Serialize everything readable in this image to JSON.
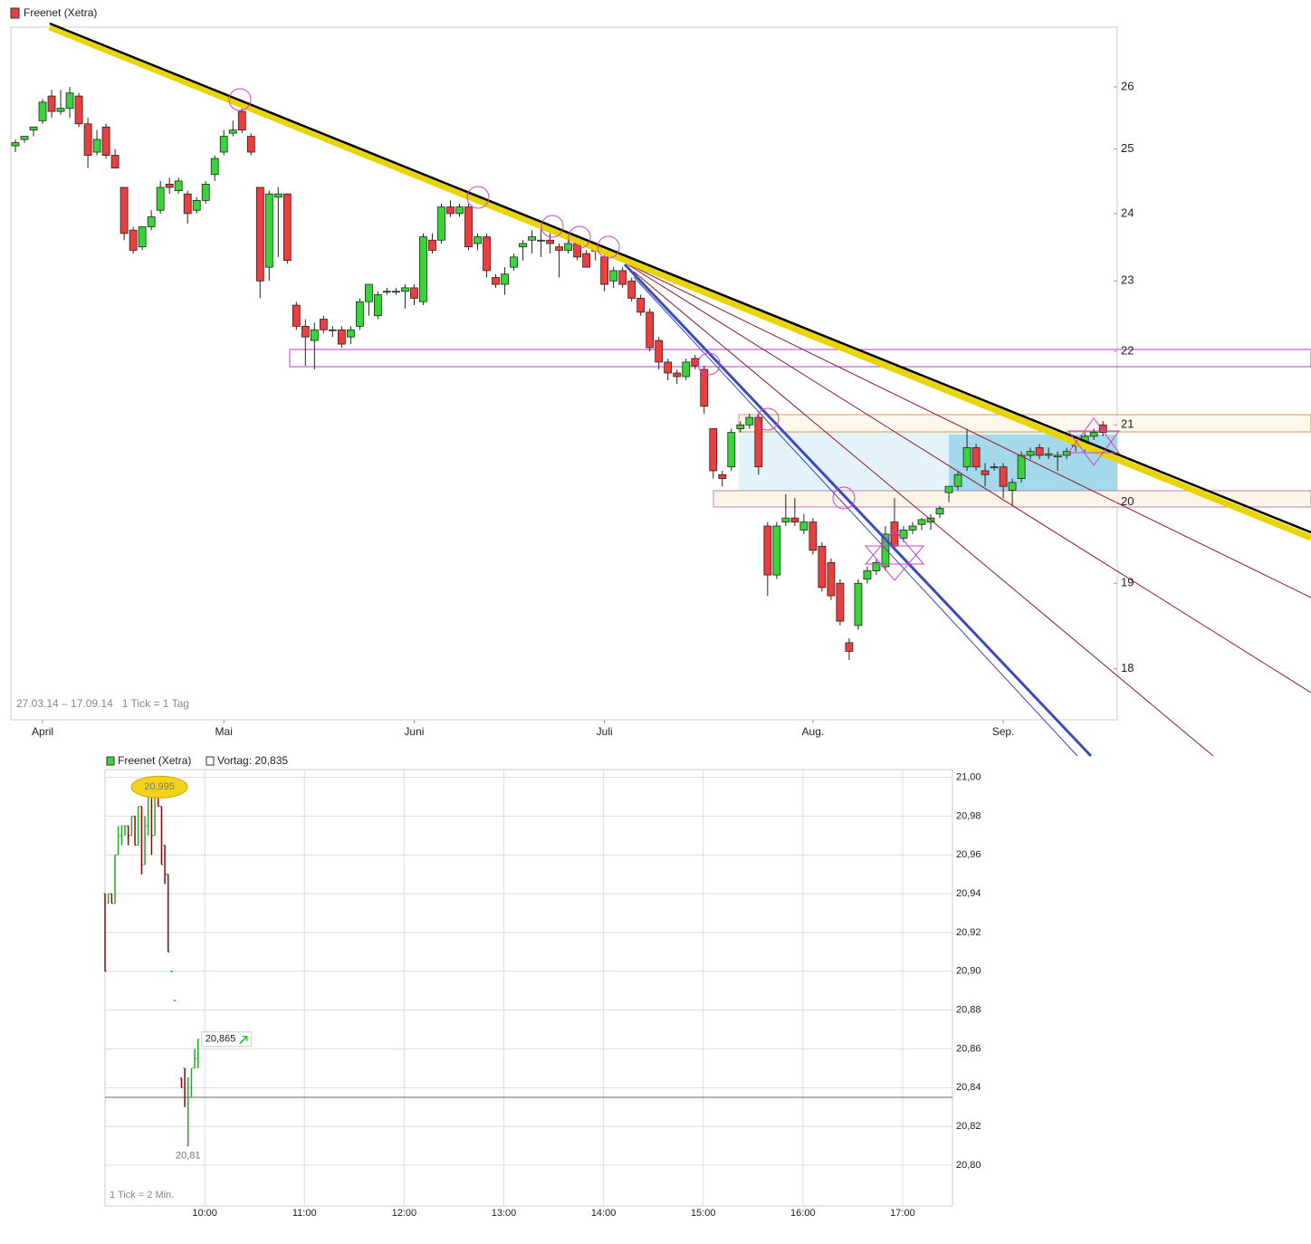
{
  "chart_data": [
    {
      "type": "candlestick",
      "legend": "Freenet (Xetra)",
      "note": "27.03.14 – 17.09.14   1 Tick = 1 Tag",
      "log_scale": true,
      "up_color": "#3ad43a",
      "down_color": "#e84040",
      "ylim": [
        17.43,
        27.0
      ],
      "yticks": [
        18,
        19,
        20,
        21,
        22,
        23,
        24,
        25,
        26
      ],
      "categories": [
        null,
        null,
        null,
        "April",
        null,
        null,
        null,
        null,
        null,
        null,
        null,
        null,
        null,
        null,
        null,
        null,
        null,
        null,
        null,
        null,
        null,
        null,
        null,
        "Mai",
        null,
        null,
        null,
        null,
        null,
        null,
        null,
        null,
        null,
        null,
        null,
        null,
        null,
        null,
        null,
        null,
        null,
        null,
        null,
        null,
        "Juni",
        null,
        null,
        null,
        null,
        null,
        null,
        null,
        null,
        null,
        null,
        null,
        null,
        null,
        null,
        null,
        null,
        null,
        null,
        null,
        null,
        "Juli",
        null,
        null,
        null,
        null,
        null,
        null,
        null,
        null,
        null,
        null,
        null,
        null,
        null,
        null,
        null,
        null,
        null,
        null,
        null,
        null,
        null,
        null,
        "Aug.",
        null,
        null,
        null,
        null,
        null,
        null,
        null,
        null,
        null,
        null,
        null,
        null,
        null,
        null,
        null,
        null,
        null,
        null,
        null,
        null,
        "Sep.",
        null,
        null,
        null,
        null,
        null,
        null,
        null,
        null,
        null,
        null,
        null
      ],
      "ohlc": [
        [
          25.05,
          25.15,
          24.95,
          25.1
        ],
        [
          25.15,
          25.2,
          25.1,
          25.2
        ],
        [
          25.3,
          25.35,
          25.2,
          25.35
        ],
        [
          25.45,
          25.8,
          25.4,
          25.75
        ],
        [
          25.85,
          25.95,
          25.5,
          25.6
        ],
        [
          25.6,
          25.95,
          25.55,
          25.65
        ],
        [
          25.65,
          26.0,
          25.5,
          25.9
        ],
        [
          25.85,
          25.9,
          25.35,
          25.4
        ],
        [
          25.4,
          25.5,
          24.7,
          24.9
        ],
        [
          24.95,
          25.3,
          24.9,
          25.15
        ],
        [
          25.35,
          25.4,
          24.85,
          24.9
        ],
        [
          24.9,
          25.0,
          24.7,
          24.7
        ],
        [
          24.4,
          24.4,
          23.6,
          23.7
        ],
        [
          23.75,
          23.8,
          23.4,
          23.45
        ],
        [
          23.5,
          23.8,
          23.45,
          23.8
        ],
        [
          23.8,
          24.05,
          23.75,
          23.95
        ],
        [
          24.05,
          24.5,
          24.0,
          24.4
        ],
        [
          24.45,
          24.55,
          24.3,
          24.4
        ],
        [
          24.35,
          24.55,
          24.3,
          24.5
        ],
        [
          24.3,
          24.35,
          23.85,
          24.0
        ],
        [
          24.05,
          24.25,
          24.0,
          24.2
        ],
        [
          24.2,
          24.5,
          24.15,
          24.45
        ],
        [
          24.6,
          24.9,
          24.5,
          24.85
        ],
        [
          24.95,
          25.3,
          24.9,
          25.2
        ],
        [
          25.25,
          25.45,
          25.2,
          25.3
        ],
        [
          25.6,
          25.7,
          25.25,
          25.3
        ],
        [
          25.2,
          25.25,
          24.9,
          24.95
        ],
        [
          24.4,
          24.4,
          22.75,
          23.0
        ],
        [
          23.2,
          24.35,
          23.0,
          24.3
        ],
        [
          24.25,
          24.4,
          23.35,
          24.3
        ],
        [
          24.3,
          24.3,
          23.25,
          23.3
        ],
        [
          22.65,
          22.7,
          22.3,
          22.35
        ],
        [
          22.35,
          22.45,
          21.8,
          22.2
        ],
        [
          22.15,
          22.4,
          21.75,
          22.3
        ],
        [
          22.45,
          22.5,
          22.25,
          22.3
        ],
        [
          22.3,
          22.35,
          22.2,
          22.3
        ],
        [
          22.3,
          22.35,
          22.05,
          22.1
        ],
        [
          22.2,
          22.35,
          22.1,
          22.3
        ],
        [
          22.35,
          22.75,
          22.3,
          22.7
        ],
        [
          22.7,
          22.95,
          22.5,
          22.95
        ],
        [
          22.5,
          22.85,
          22.45,
          22.8
        ],
        [
          22.85,
          22.9,
          22.8,
          22.85
        ],
        [
          22.85,
          22.9,
          22.8,
          22.85
        ],
        [
          22.85,
          22.95,
          22.6,
          22.9
        ],
        [
          22.9,
          22.95,
          22.65,
          22.75
        ],
        [
          22.7,
          23.7,
          22.65,
          23.65
        ],
        [
          23.6,
          23.7,
          23.4,
          23.45
        ],
        [
          23.6,
          24.15,
          23.55,
          24.1
        ],
        [
          24.1,
          24.2,
          23.95,
          24.0
        ],
        [
          24.0,
          24.15,
          23.95,
          24.1
        ],
        [
          24.1,
          24.15,
          23.45,
          23.5
        ],
        [
          23.55,
          23.7,
          23.45,
          23.65
        ],
        [
          23.65,
          23.7,
          23.05,
          23.15
        ],
        [
          23.05,
          23.1,
          22.9,
          22.95
        ],
        [
          22.95,
          23.2,
          22.8,
          23.1
        ],
        [
          23.2,
          23.4,
          23.15,
          23.35
        ],
        [
          23.5,
          23.6,
          23.3,
          23.55
        ],
        [
          23.6,
          23.75,
          23.4,
          23.65
        ],
        [
          23.6,
          23.8,
          23.35,
          23.6
        ],
        [
          23.6,
          23.7,
          23.4,
          23.55
        ],
        [
          23.5,
          23.55,
          23.05,
          23.45
        ],
        [
          23.45,
          23.6,
          23.4,
          23.55
        ],
        [
          23.55,
          23.6,
          23.3,
          23.35
        ],
        [
          23.4,
          23.45,
          23.2,
          23.2
        ],
        [
          23.45,
          23.5,
          23.3,
          23.45
        ],
        [
          23.35,
          23.4,
          22.85,
          22.95
        ],
        [
          23.0,
          23.2,
          22.9,
          23.15
        ],
        [
          23.15,
          23.2,
          22.9,
          22.95
        ],
        [
          23.0,
          23.05,
          22.7,
          22.75
        ],
        [
          22.75,
          22.8,
          22.5,
          22.55
        ],
        [
          22.55,
          22.6,
          22.0,
          22.05
        ],
        [
          22.15,
          22.2,
          21.75,
          21.85
        ],
        [
          21.85,
          21.9,
          21.6,
          21.7
        ],
        [
          21.7,
          21.75,
          21.55,
          21.65
        ],
        [
          21.65,
          21.9,
          21.6,
          21.85
        ],
        [
          21.9,
          21.95,
          21.75,
          21.8
        ],
        [
          21.75,
          21.8,
          21.15,
          21.25
        ],
        [
          20.95,
          20.95,
          20.3,
          20.4
        ],
        [
          20.35,
          20.4,
          20.2,
          20.3
        ],
        [
          20.45,
          20.95,
          20.4,
          20.9
        ],
        [
          20.95,
          21.05,
          20.9,
          21.0
        ],
        [
          21.0,
          21.15,
          20.95,
          21.1
        ],
        [
          21.1,
          21.15,
          20.35,
          20.45
        ],
        [
          19.7,
          19.75,
          18.85,
          19.1
        ],
        [
          19.1,
          19.75,
          19.05,
          19.7
        ],
        [
          19.75,
          20.1,
          19.7,
          19.8
        ],
        [
          19.8,
          20.05,
          19.7,
          19.75
        ],
        [
          19.65,
          19.85,
          19.6,
          19.75
        ],
        [
          19.75,
          19.8,
          19.35,
          19.4
        ],
        [
          19.45,
          19.5,
          18.9,
          18.95
        ],
        [
          19.25,
          19.3,
          18.8,
          18.85
        ],
        [
          19.0,
          19.05,
          18.5,
          18.55
        ],
        [
          18.3,
          18.35,
          18.1,
          18.2
        ],
        [
          18.5,
          19.05,
          18.45,
          19.0
        ],
        [
          19.05,
          19.2,
          19.0,
          19.15
        ],
        [
          19.15,
          19.3,
          19.1,
          19.25
        ],
        [
          19.2,
          19.7,
          19.15,
          19.6
        ],
        [
          19.75,
          20.05,
          19.4,
          19.45
        ],
        [
          19.55,
          19.7,
          19.5,
          19.65
        ],
        [
          19.65,
          19.75,
          19.6,
          19.7
        ],
        [
          19.72,
          19.8,
          19.65,
          19.78
        ],
        [
          19.75,
          19.85,
          19.65,
          19.8
        ],
        [
          19.85,
          19.95,
          19.8,
          19.92
        ],
        [
          20.12,
          20.2,
          20.0,
          20.2
        ],
        [
          20.2,
          20.4,
          20.15,
          20.35
        ],
        [
          20.45,
          20.95,
          20.4,
          20.7
        ],
        [
          20.7,
          20.75,
          20.4,
          20.45
        ],
        [
          20.4,
          20.5,
          20.2,
          20.35
        ],
        [
          20.45,
          20.5,
          20.4,
          20.45
        ],
        [
          20.45,
          20.5,
          20.05,
          20.2
        ],
        [
          20.15,
          20.3,
          19.95,
          20.25
        ],
        [
          20.3,
          20.65,
          20.25,
          20.6
        ],
        [
          20.6,
          20.7,
          20.55,
          20.65
        ],
        [
          20.7,
          20.75,
          20.55,
          20.6
        ],
        [
          20.6,
          20.7,
          20.55,
          20.62
        ],
        [
          20.58,
          20.65,
          20.4,
          20.6
        ],
        [
          20.6,
          20.7,
          20.55,
          20.65
        ],
        [
          20.72,
          20.8,
          20.65,
          20.75
        ],
        [
          20.75,
          20.9,
          20.65,
          20.85
        ],
        [
          20.85,
          20.95,
          20.8,
          20.9
        ],
        [
          21.0,
          21.05,
          20.85,
          20.9
        ]
      ]
    },
    {
      "type": "ohlc",
      "legend": "Freenet (Xetra)",
      "prev_close_label": "Vortag: 20,835",
      "prev_close": 20.835,
      "note": "1 Tick = 2 Min.",
      "grid": true,
      "up_color": "#22aa22",
      "down_color": "#990000",
      "xlim": [
        9,
        17.5
      ],
      "xticks": [
        {
          "value": 10,
          "label": "10:00"
        },
        {
          "value": 11,
          "label": "11:00"
        },
        {
          "value": 12,
          "label": "12:00"
        },
        {
          "value": 13,
          "label": "13:00"
        },
        {
          "value": 14,
          "label": "14:00"
        },
        {
          "value": 15,
          "label": "15:00"
        },
        {
          "value": 16,
          "label": "16:00"
        },
        {
          "value": 17,
          "label": "17:00"
        }
      ],
      "ylim": [
        20.779,
        21.004
      ],
      "yticks": [
        {
          "value": 20.8,
          "label": "20,80"
        },
        {
          "value": 20.82,
          "label": "20,82"
        },
        {
          "value": 20.84,
          "label": "20,84"
        },
        {
          "value": 20.86,
          "label": "20,86"
        },
        {
          "value": 20.88,
          "label": "20,88"
        },
        {
          "value": 20.9,
          "label": "20,90"
        },
        {
          "value": 20.92,
          "label": "20,92"
        },
        {
          "value": 20.94,
          "label": "20,94"
        },
        {
          "value": 20.96,
          "label": "20,96"
        },
        {
          "value": 20.98,
          "label": "20,98"
        },
        {
          "value": 21.0,
          "label": "21,00"
        }
      ],
      "x": [
        9.0,
        9.033,
        9.067,
        9.1,
        9.133,
        9.167,
        9.2,
        9.233,
        9.267,
        9.3,
        9.333,
        9.367,
        9.4,
        9.433,
        9.467,
        9.5,
        9.533,
        9.567,
        9.6,
        9.633,
        9.667,
        9.7,
        9.767,
        9.8,
        9.833,
        9.867,
        9.9,
        9.933
      ],
      "ohlc": [
        [
          20.94,
          20.94,
          20.9,
          20.9
        ],
        [
          20.935,
          20.94,
          20.935,
          20.94
        ],
        [
          20.94,
          20.94,
          20.935,
          20.935
        ],
        [
          20.935,
          20.96,
          20.935,
          20.96
        ],
        [
          20.96,
          20.975,
          20.96,
          20.97
        ],
        [
          20.97,
          20.975,
          20.965,
          20.975
        ],
        [
          20.975,
          20.975,
          20.97,
          20.975
        ],
        [
          20.975,
          20.975,
          20.965,
          20.97
        ],
        [
          20.97,
          20.98,
          20.97,
          20.98
        ],
        [
          20.98,
          20.98,
          20.965,
          20.965
        ],
        [
          20.965,
          20.985,
          20.965,
          20.985
        ],
        [
          20.985,
          20.985,
          20.95,
          20.955
        ],
        [
          20.955,
          20.98,
          20.955,
          20.975
        ],
        [
          20.975,
          20.99,
          20.97,
          20.99
        ],
        [
          20.99,
          20.995,
          20.96,
          20.97
        ],
        [
          20.97,
          20.995,
          20.97,
          20.995
        ],
        [
          20.99,
          20.99,
          20.985,
          20.985
        ],
        [
          20.985,
          20.985,
          20.955,
          20.955
        ],
        [
          20.965,
          20.965,
          20.945,
          20.95
        ],
        [
          20.95,
          20.95,
          20.91,
          20.91
        ],
        [
          20.9,
          20.9,
          20.9,
          20.9
        ],
        [
          20.885,
          20.885,
          20.885,
          20.885
        ],
        [
          20.845,
          20.845,
          20.84,
          20.84
        ],
        [
          20.85,
          20.85,
          20.83,
          20.835
        ],
        [
          20.81,
          20.845,
          20.81,
          20.845
        ],
        [
          20.84,
          20.85,
          20.835,
          20.85
        ],
        [
          20.85,
          20.86,
          20.85,
          20.855
        ],
        [
          20.855,
          20.865,
          20.85,
          20.865
        ]
      ],
      "high_label": {
        "x": 9.5,
        "value": 20.995,
        "label": "20,995"
      },
      "low_label": {
        "x": 9.833,
        "value": 20.81,
        "label": "20,81"
      },
      "last_label": {
        "x": 9.933,
        "value": 20.865,
        "label": "20,865"
      }
    }
  ]
}
